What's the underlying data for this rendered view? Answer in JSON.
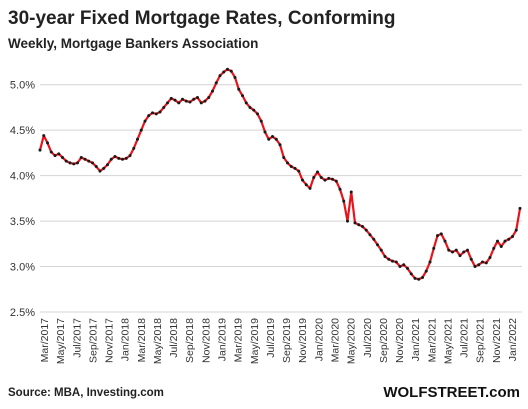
{
  "chart_data": {
    "type": "line",
    "title": "30-year Fixed Mortgage Rates, Conforming",
    "subtitle": "Weekly, Mortgage Bankers Association",
    "source": "Source: MBA,  Investing.com",
    "brand": "WOLFSTREET.com",
    "ylim": [
      2.5,
      5.25
    ],
    "yticks": [
      "2.5%",
      "3.0%",
      "3.5%",
      "4.0%",
      "4.5%",
      "5.0%"
    ],
    "grid": "horizontal",
    "colors": {
      "line": "#e8141c",
      "markers": "#1a1a1a",
      "grid": "#d4d4d4"
    },
    "x_start_month": "2017-03",
    "xtick_labels": [
      "Mar/2017",
      "May/2017",
      "Jul/2017",
      "Sep/2017",
      "Nov/2017",
      "Jan/2018",
      "Mar/2018",
      "May/2018",
      "Jul/2018",
      "Sep/2018",
      "Nov/2018",
      "Jan/2019",
      "Mar/2019",
      "May/2019",
      "Jul/2019",
      "Sep/2019",
      "Nov/2019",
      "Jan/2020",
      "Mar/2020",
      "May/2020",
      "Jul/2020",
      "Sep/2020",
      "Nov/2020",
      "Jan/2021",
      "Mar/2021",
      "May/2021",
      "Jul/2021",
      "Sep/2021",
      "Nov/2021",
      "Jan/2022"
    ],
    "series": [
      {
        "values": [
          4.28,
          4.44,
          4.36,
          4.26,
          4.22,
          4.24,
          4.2,
          4.16,
          4.14,
          4.13,
          4.14,
          4.2,
          4.18,
          4.16,
          4.14,
          4.1,
          4.05,
          4.08,
          4.12,
          4.18,
          4.21,
          4.19,
          4.18,
          4.19,
          4.22,
          4.3,
          4.4,
          4.5,
          4.6,
          4.66,
          4.69,
          4.68,
          4.7,
          4.75,
          4.8,
          4.85,
          4.83,
          4.8,
          4.84,
          4.82,
          4.81,
          4.84,
          4.86,
          4.8,
          4.82,
          4.86,
          4.93,
          5.02,
          5.1,
          5.14,
          5.17,
          5.15,
          5.08,
          4.95,
          4.88,
          4.8,
          4.75,
          4.72,
          4.68,
          4.6,
          4.48,
          4.4,
          4.43,
          4.4,
          4.34,
          4.2,
          4.14,
          4.1,
          4.08,
          4.05,
          3.95,
          3.9,
          3.86,
          3.98,
          4.04,
          3.98,
          3.95,
          3.97,
          3.96,
          3.94,
          3.85,
          3.72,
          3.5,
          3.82,
          3.48,
          3.46,
          3.44,
          3.4,
          3.35,
          3.3,
          3.24,
          3.18,
          3.11,
          3.08,
          3.06,
          3.05,
          3.0,
          3.02,
          2.98,
          2.92,
          2.87,
          2.86,
          2.88,
          2.95,
          3.05,
          3.2,
          3.34,
          3.36,
          3.28,
          3.18,
          3.16,
          3.18,
          3.12,
          3.16,
          3.18,
          3.08,
          3.0,
          3.02,
          3.05,
          3.04,
          3.1,
          3.2,
          3.28,
          3.22,
          3.28,
          3.3,
          3.33,
          3.4,
          3.64
        ]
      }
    ]
  }
}
